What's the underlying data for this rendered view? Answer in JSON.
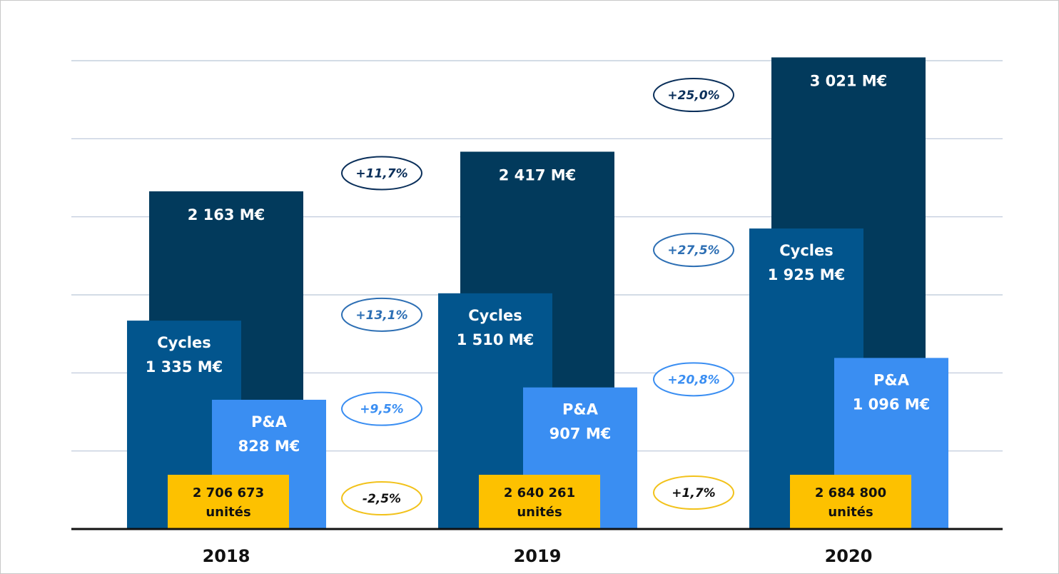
{
  "chart_data": {
    "type": "bar",
    "categories": [
      "2018",
      "2019",
      "2020"
    ],
    "ylim": [
      0,
      3000
    ],
    "yticks": [
      500,
      1000,
      1500,
      2000,
      2500,
      3000
    ],
    "grid": true,
    "series": [
      {
        "color": "#023a5c",
        "values": [
          2163,
          2417,
          3021
        ],
        "value_labels": [
          "2 163 M€",
          "2 417 M€",
          "3 021 M€"
        ],
        "growth": [
          "+11,7%",
          "+25,0%"
        ],
        "growth_color": "#0a2f5a"
      },
      {
        "name": "Cycles",
        "color": "#02558d",
        "values": [
          1335,
          1510,
          1925
        ],
        "value_labels": [
          "1 335 M€",
          "1 510 M€",
          "1 925 M€"
        ],
        "growth": [
          "+13,1%",
          "+27,5%"
        ],
        "growth_color": "#2d6fb4"
      },
      {
        "name": "P&A",
        "color": "#3a8ef2",
        "values": [
          828,
          907,
          1096
        ],
        "value_labels": [
          "828 M€",
          "907 M€",
          "1 096 M€"
        ],
        "growth": [
          "+9,5%",
          "+20,8%"
        ],
        "growth_color": "#3a8ef2"
      }
    ],
    "units": {
      "color": "#fdc100",
      "value_labels": [
        "2 706 673",
        "2 640 261",
        "2 684 800"
      ],
      "label": "unités",
      "growth": [
        "-2,5%",
        "+1,7%"
      ],
      "growth_color": "#f2c21b"
    }
  }
}
